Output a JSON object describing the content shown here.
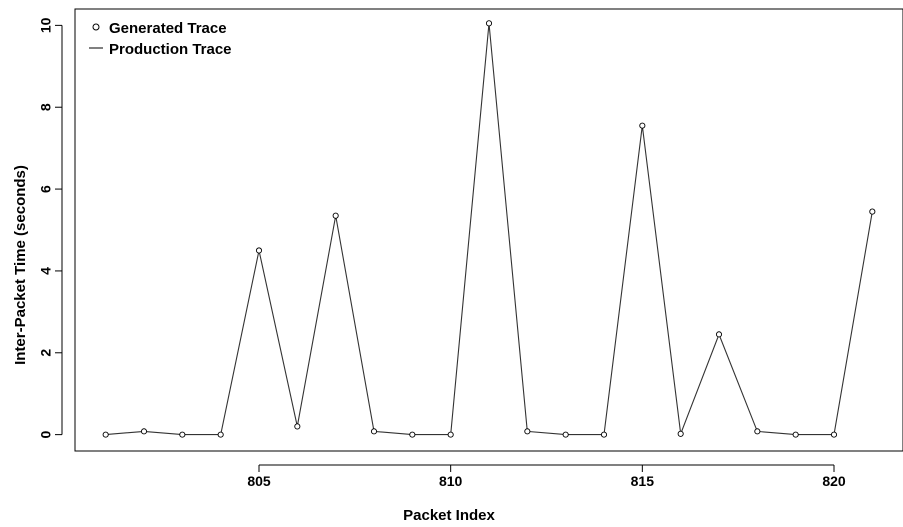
{
  "chart_data": {
    "type": "line",
    "title": "",
    "xlabel": "Packet Index",
    "ylabel": "Inter-Packet Time (seconds)",
    "xlim": [
      800.2,
      821.8
    ],
    "ylim": [
      -0.4,
      10.4
    ],
    "x_ticks": [
      805,
      810,
      815,
      820
    ],
    "y_ticks": [
      0,
      2,
      4,
      6,
      8,
      10
    ],
    "grid": false,
    "legend_position": "top-left",
    "legend": [
      {
        "label": "Generated Trace",
        "marker": "circle"
      },
      {
        "label": "Production Trace",
        "marker": "line"
      }
    ],
    "x": [
      801,
      802,
      803,
      804,
      805,
      806,
      807,
      808,
      809,
      810,
      811,
      812,
      813,
      814,
      815,
      816,
      817,
      818,
      819,
      820,
      821
    ],
    "series": [
      {
        "name": "Generated Trace",
        "style": "points",
        "values": [
          0.0,
          0.08,
          0.0,
          0.0,
          4.5,
          0.2,
          5.35,
          0.08,
          0.0,
          0.0,
          10.05,
          0.08,
          0.0,
          0.0,
          7.55,
          0.02,
          2.45,
          0.08,
          0.0,
          0.0,
          5.45
        ]
      },
      {
        "name": "Production Trace",
        "style": "line",
        "values": [
          0.0,
          0.08,
          0.0,
          0.0,
          4.5,
          0.2,
          5.35,
          0.08,
          0.0,
          0.0,
          10.05,
          0.08,
          0.0,
          0.0,
          7.55,
          0.02,
          2.45,
          0.08,
          0.0,
          0.0,
          5.45
        ]
      }
    ]
  }
}
